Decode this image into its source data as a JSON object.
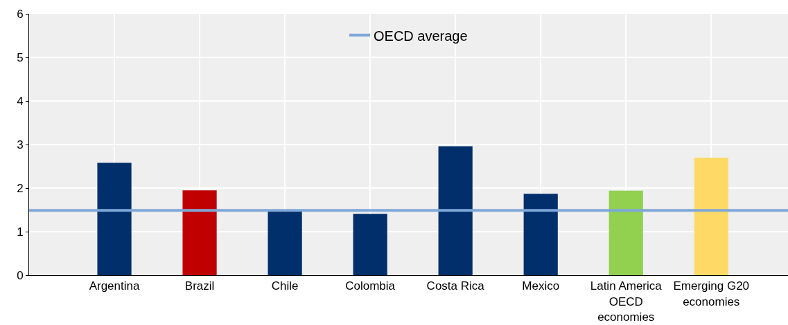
{
  "chart_data": {
    "type": "bar",
    "categories": [
      "Argentina",
      "Brazil",
      "Chile",
      "Colombia",
      "Costa Rica",
      "Mexico",
      "Latin America OECD economies",
      "Emerging G20 economies"
    ],
    "values": [
      2.58,
      1.95,
      1.47,
      1.41,
      2.96,
      1.87,
      1.94,
      2.7
    ],
    "colors": [
      "#002f6c",
      "#c00000",
      "#002f6c",
      "#002f6c",
      "#002f6c",
      "#002f6c",
      "#92d050",
      "#ffd966"
    ],
    "ylim": [
      0,
      6
    ],
    "yticks": [
      0,
      1,
      2,
      3,
      4,
      5,
      6
    ],
    "grid": true,
    "legend": "top",
    "ref_lines": [
      {
        "axis": "y",
        "value": 1.49,
        "label": "OECD average",
        "color": "#7fa8d9",
        "line_style": "solid"
      }
    ]
  }
}
